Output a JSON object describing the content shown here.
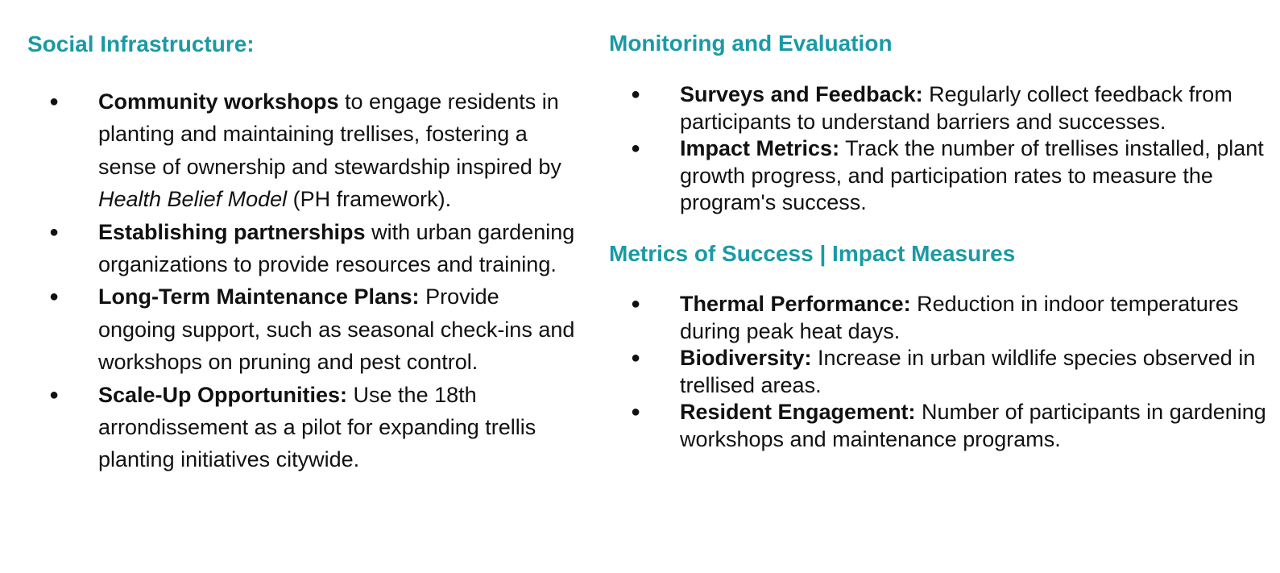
{
  "social": {
    "heading": "Social Infrastructure:",
    "items": [
      {
        "bold": "Community workshops",
        "text": " to engage residents in planting and maintaining trellises, fostering a sense of ownership and stewardship inspired by ",
        "italic": "Health Belief Model",
        "text_after": " (PH framework)."
      },
      {
        "bold": "Establishing partnerships",
        "text": " with urban gardening organizations to provide resources and training."
      },
      {
        "bold": "Long-Term Maintenance Plans:",
        "text": " Provide ongoing support, such as seasonal check-ins and workshops on pruning and pest control."
      },
      {
        "bold": "Scale-Up Opportunities:",
        "text": " Use the 18th arrondissement as a pilot for expanding trellis planting initiatives citywide."
      }
    ]
  },
  "monitoring": {
    "heading": "Monitoring and Evaluation",
    "items": [
      {
        "bold": "Surveys and Feedback:",
        "text": " Regularly collect feedback from participants to understand barriers and successes."
      },
      {
        "bold": "Impact Metrics:",
        "text": " Track the number of trellises installed, plant growth progress, and participation rates to measure the program's success."
      }
    ]
  },
  "metrics": {
    "heading": "Metrics of Success | Impact Measures",
    "items": [
      {
        "bold": "Thermal Performance:",
        "text": " Reduction in indoor temperatures during peak heat days."
      },
      {
        "bold": "Biodiversity:",
        "text": " Increase in urban wildlife species observed in trellised areas."
      },
      {
        "bold": "Resident Engagement:",
        "text": " Number of participants in gardening workshops and maintenance programs."
      }
    ]
  },
  "bullet_glyph": "●",
  "colors": {
    "heading": "#1a9aa5",
    "body_text": "#111111",
    "background": "#ffffff"
  }
}
